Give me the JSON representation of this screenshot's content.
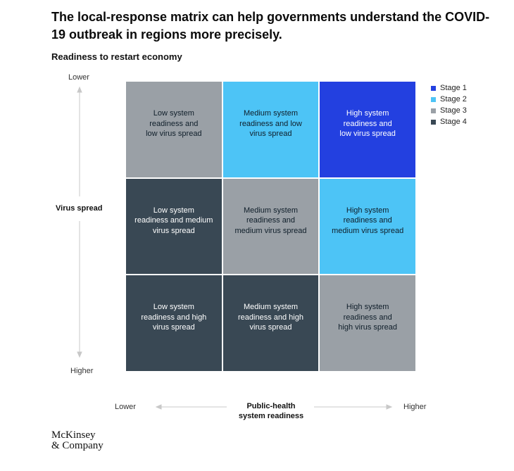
{
  "title": "The local-response matrix can help governments understand the COVID-19 outbreak in regions more precisely.",
  "subtitle": "Readiness to restart economy",
  "brand": {
    "line1": "McKinsey",
    "line2": "& Company"
  },
  "chart_data": {
    "type": "heatmap",
    "rows": [
      "Low virus spread",
      "Medium virus spread",
      "High virus spread"
    ],
    "columns": [
      "Low system readiness",
      "Medium system readiness",
      "High system readiness"
    ],
    "y_axis": {
      "label": "Virus spread",
      "top": "Lower",
      "bottom": "Higher"
    },
    "x_axis": {
      "label_line1": "Public-health",
      "label_line2": "system readiness",
      "left": "Lower",
      "right": "Higher"
    },
    "cells": [
      [
        {
          "text": "Low system\nreadiness and\nlow virus spread",
          "stage": 3
        },
        {
          "text": "Medium system\nreadiness and low\nvirus spread",
          "stage": 2
        },
        {
          "text": "High system\nreadiness and\nlow virus spread",
          "stage": 1
        }
      ],
      [
        {
          "text": "Low system\nreadiness and medium\nvirus  spread",
          "stage": 4
        },
        {
          "text": "Medium system\nreadiness and\nmedium virus spread",
          "stage": 3
        },
        {
          "text": "High system\nreadiness and\nmedium virus spread",
          "stage": 2
        }
      ],
      [
        {
          "text": "Low system\nreadiness and high\nvirus spread",
          "stage": 4
        },
        {
          "text": "Medium system\nreadiness and high\nvirus spread",
          "stage": 4
        },
        {
          "text": "High system\nreadiness and\nhigh virus spread",
          "stage": 3
        }
      ]
    ],
    "legend": [
      {
        "label": "Stage 1",
        "color": "#2340e0"
      },
      {
        "label": "Stage 2",
        "color": "#4dc4f6"
      },
      {
        "label": "Stage 3",
        "color": "#9aa0a6"
      },
      {
        "label": "Stage 4",
        "color": "#394854"
      }
    ],
    "text_colors": {
      "1": "#ffffff",
      "2": "#0f1e2a",
      "3": "#0f1e2a",
      "4": "#ffffff"
    }
  }
}
